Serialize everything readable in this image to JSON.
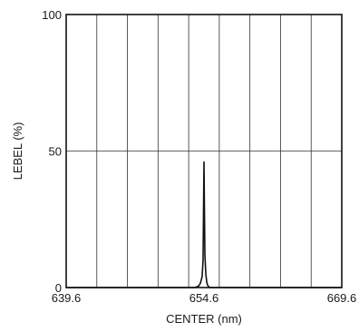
{
  "chart_data": {
    "type": "line",
    "xlabel": "CENTER (nm)",
    "ylabel": "LEBEL (%)",
    "xlim": [
      639.6,
      669.6
    ],
    "ylim": [
      0,
      100
    ],
    "x_tick_labels": [
      "639.6",
      "654.6",
      "669.6"
    ],
    "y_tick_labels": [
      "0",
      "50",
      "100"
    ],
    "x_tick_values": [
      639.6,
      654.6,
      669.6
    ],
    "y_tick_values": [
      0,
      50,
      100
    ],
    "vertical_gridlines": 8,
    "horizontal_gridlines": [
      50
    ],
    "grid": true,
    "series": [
      {
        "x": [
          639.6,
          653.6,
          654.0,
          654.2,
          654.4,
          654.5,
          654.6,
          654.7,
          654.8,
          654.9,
          655.0,
          655.2,
          669.6
        ],
        "y": [
          0,
          0,
          0.5,
          1.5,
          4,
          10,
          46,
          12,
          5,
          2,
          0.8,
          0,
          0
        ]
      }
    ],
    "colors": {
      "line": "#111111",
      "grid": "#333333",
      "frame": "#111111"
    }
  }
}
